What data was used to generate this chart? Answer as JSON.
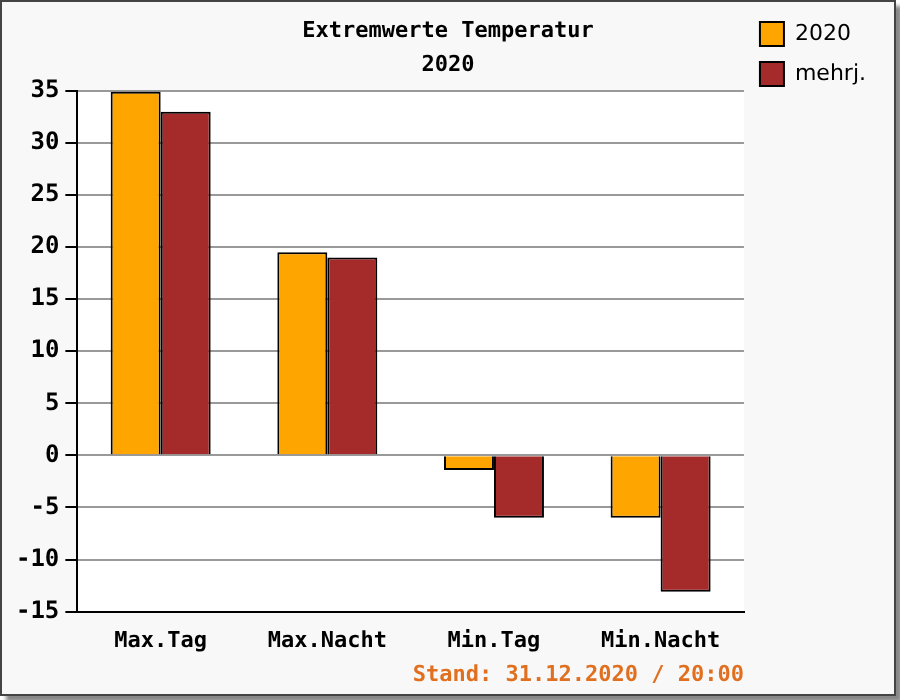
{
  "chart_data": {
    "type": "bar",
    "title": "Extremwerte Temperatur",
    "subtitle": "2020",
    "categories": [
      "Max.Tag",
      "Max.Nacht",
      "Min.Tag",
      "Min.Nacht"
    ],
    "series": [
      {
        "name": "2020",
        "color": "#ffa500",
        "values": [
          34.9,
          19.5,
          -1.4,
          -6.0
        ]
      },
      {
        "name": "mehrj.",
        "color": "#a52a2a",
        "values": [
          33.0,
          19.0,
          -6.0,
          -13.1
        ]
      }
    ],
    "ylim": [
      -15,
      35
    ],
    "yticks": [
      -15,
      -10,
      -5,
      0,
      5,
      10,
      15,
      20,
      25,
      30,
      35
    ],
    "grid": "y",
    "legend": "top right",
    "annotations": [
      "Stand: 31.12.2020 / 20:00"
    ]
  }
}
